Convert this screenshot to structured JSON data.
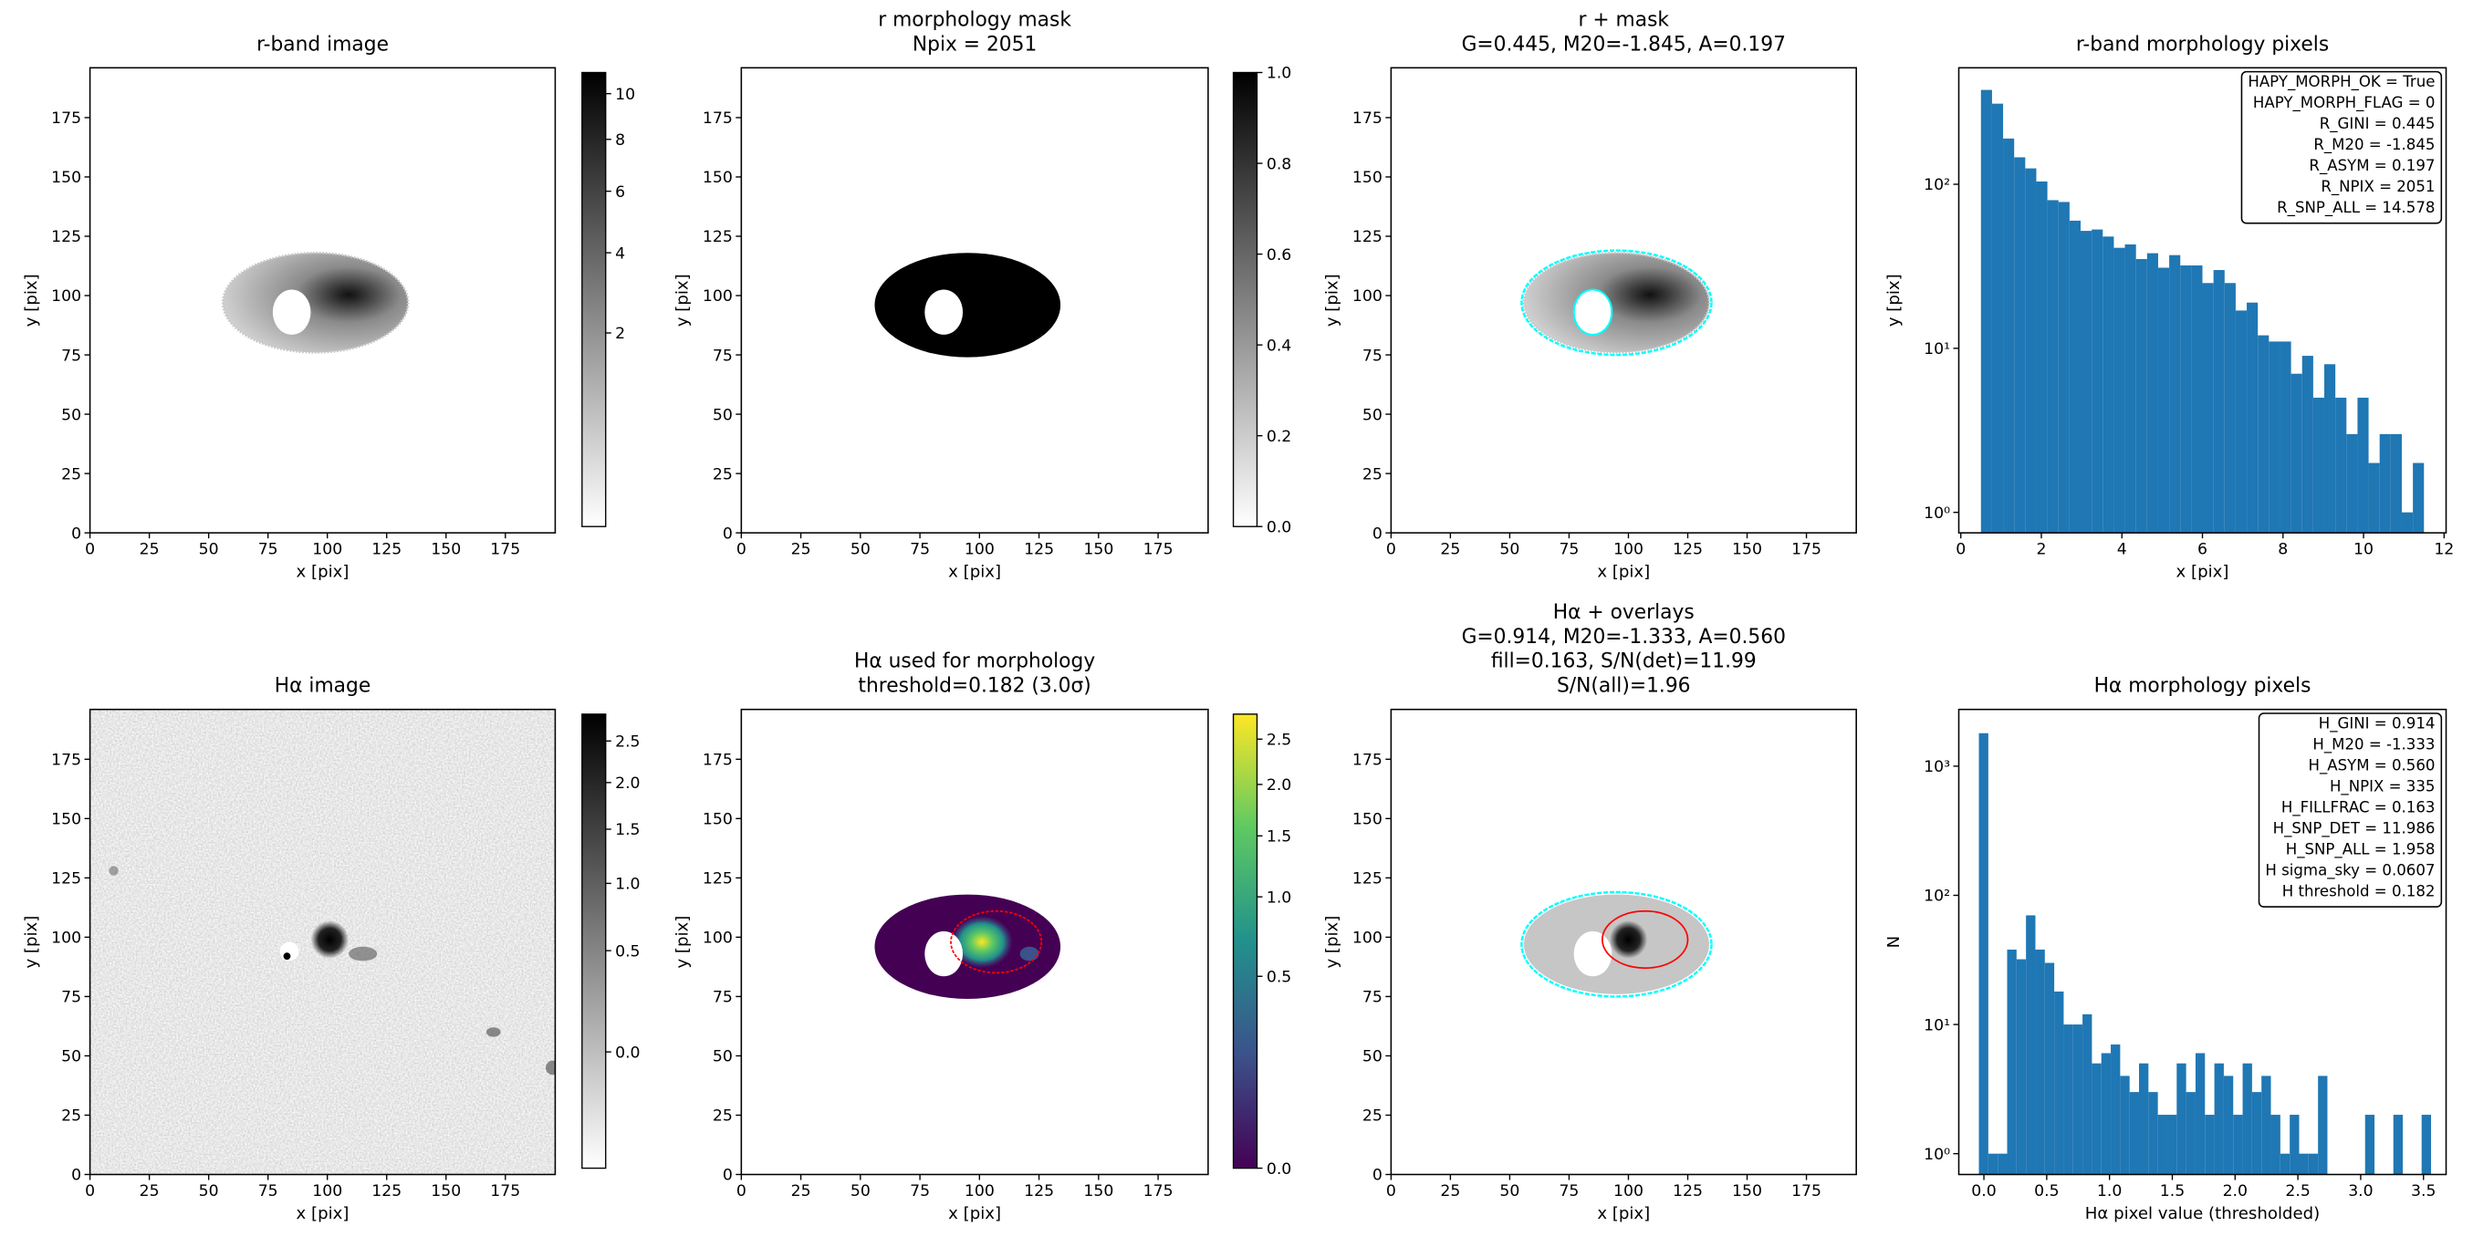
{
  "chart_data": [
    {
      "type": "image",
      "title": [
        "r-band image"
      ],
      "xlabel": "x [pix]",
      "ylabel": "y [pix]",
      "xlim": [
        0,
        196
      ],
      "ylim": [
        0,
        196
      ],
      "xticks": [
        0,
        25,
        50,
        75,
        100,
        125,
        150,
        175
      ],
      "yticks": [
        0,
        25,
        50,
        75,
        100,
        125,
        150,
        175
      ],
      "colorbar": {
        "clim": [
          0,
          11
        ],
        "stretch": "sqrt",
        "colormap": "gray_r",
        "ticks": [
          2,
          4,
          6,
          8,
          10
        ]
      }
    },
    {
      "type": "image",
      "title": [
        "r morphology mask",
        "Npix = 2051"
      ],
      "xlabel": "x [pix]",
      "ylabel": "y [pix]",
      "xlim": [
        0,
        196
      ],
      "ylim": [
        0,
        196
      ],
      "xticks": [
        0,
        25,
        50,
        75,
        100,
        125,
        150,
        175
      ],
      "yticks": [
        0,
        25,
        50,
        75,
        100,
        125,
        150,
        175
      ],
      "colorbar": {
        "clim": [
          0,
          1
        ],
        "stretch": "linear",
        "colormap": "gray_r",
        "ticks": [
          {
            "value": 0,
            "label": "0.0"
          },
          {
            "value": 0.2,
            "label": "0.2"
          },
          {
            "value": 0.4,
            "label": "0.4"
          },
          {
            "value": 0.6,
            "label": "0.6"
          },
          {
            "value": 0.8,
            "label": "0.8"
          },
          {
            "value": 1,
            "label": "1.0"
          }
        ]
      }
    },
    {
      "type": "image",
      "title": [
        "r + mask",
        "G=0.445, M20=-1.845, A=0.197"
      ],
      "xlabel": "x [pix]",
      "ylabel": "y [pix]",
      "xlim": [
        0,
        196
      ],
      "ylim": [
        0,
        196
      ],
      "xticks": [
        0,
        25,
        50,
        75,
        100,
        125,
        150,
        175
      ],
      "yticks": [
        0,
        25,
        50,
        75,
        100,
        125,
        150,
        175
      ]
    },
    {
      "type": "histogram",
      "title": [
        "r-band morphology pixels"
      ],
      "xlabel": "x [pix]",
      "ylabel": "y [pix]",
      "bins": [
        0.5,
        0.775,
        1.05,
        1.325,
        1.6,
        1.875,
        2.15,
        2.425,
        2.7,
        2.975,
        3.25,
        3.525,
        3.8,
        4.075,
        4.35,
        4.625,
        4.9,
        5.175,
        5.45,
        5.725,
        6,
        6.275,
        6.55,
        6.825,
        7.1,
        7.375,
        7.65,
        7.925,
        8.2,
        8.475,
        8.75,
        9.025,
        9.3,
        9.575,
        9.85,
        10.125,
        10.4,
        10.675,
        10.95,
        11.225,
        11.5
      ],
      "values": [
        376,
        310,
        190,
        146,
        125,
        104,
        80,
        78,
        60,
        52,
        53,
        48,
        41,
        43,
        35,
        38,
        31,
        37,
        32,
        32,
        25,
        30,
        25,
        17,
        19,
        12,
        11,
        11,
        7,
        9,
        5,
        8,
        5,
        3,
        5,
        2,
        3,
        3,
        1,
        2
      ],
      "color": "#1f77b4",
      "log_y": true,
      "xlim": [
        -0.05,
        12.05
      ],
      "ylim": [
        0.75,
        513
      ],
      "xticks": [
        0,
        2,
        4,
        6,
        8,
        10,
        12
      ],
      "yticks": [
        {
          "value": 1,
          "label": "10⁰"
        },
        {
          "value": 10,
          "label": "10¹"
        },
        {
          "value": 100,
          "label": "10²"
        }
      ],
      "annotation_corner": "upper right",
      "annotation": [
        "HAPY_MORPH_OK = True",
        "HAPY_MORPH_FLAG = 0",
        "R_GINI = 0.445",
        "R_M20 = -1.845",
        "R_ASYM = 0.197",
        "R_NPIX = 2051",
        "R_SNP_ALL = 14.578"
      ]
    },
    {
      "type": "image",
      "title": [
        "Hα image"
      ],
      "xlabel": "x [pix]",
      "ylabel": "y [pix]",
      "xlim": [
        0,
        196
      ],
      "ylim": [
        0,
        196
      ],
      "xticks": [
        0,
        25,
        50,
        75,
        100,
        125,
        150,
        175
      ],
      "yticks": [
        0,
        25,
        50,
        75,
        100,
        125,
        150,
        175
      ],
      "colorbar": {
        "clim": [
          -0.2,
          2.85
        ],
        "stretch": "sqrt",
        "colormap": "gray_r",
        "ticks": [
          {
            "value": 0,
            "label": "0.0"
          },
          {
            "value": 0.5,
            "label": "0.5"
          },
          {
            "value": 1,
            "label": "1.0"
          },
          {
            "value": 1.5,
            "label": "1.5"
          },
          {
            "value": 2,
            "label": "2.0"
          },
          {
            "value": 2.5,
            "label": "2.5"
          }
        ]
      }
    },
    {
      "type": "image",
      "title": [
        "Hα used for morphology",
        "threshold=0.182 (3.0σ)"
      ],
      "xlabel": "x [pix]",
      "ylabel": "y [pix]",
      "xlim": [
        0,
        196
      ],
      "ylim": [
        0,
        196
      ],
      "xticks": [
        0,
        25,
        50,
        75,
        100,
        125,
        150,
        175
      ],
      "yticks": [
        0,
        25,
        50,
        75,
        100,
        125,
        150,
        175
      ],
      "colorbar": {
        "clim": [
          0,
          2.8
        ],
        "stretch": "sqrt",
        "colormap": "viridis",
        "ticks": [
          {
            "value": 0,
            "label": "0.0"
          },
          {
            "value": 0.5,
            "label": "0.5"
          },
          {
            "value": 1,
            "label": "1.0"
          },
          {
            "value": 1.5,
            "label": "1.5"
          },
          {
            "value": 2,
            "label": "2.0"
          },
          {
            "value": 2.5,
            "label": "2.5"
          }
        ]
      }
    },
    {
      "type": "image",
      "title": [
        "Hα + overlays",
        "G=0.914, M20=-1.333, A=0.560",
        "fill=0.163, S/N(det)=11.99",
        "S/N(all)=1.96"
      ],
      "xlabel": "x [pix]",
      "ylabel": "y [pix]",
      "xlim": [
        0,
        196
      ],
      "ylim": [
        0,
        196
      ],
      "xticks": [
        0,
        25,
        50,
        75,
        100,
        125,
        150,
        175
      ],
      "yticks": [
        0,
        25,
        50,
        75,
        100,
        125,
        150,
        175
      ]
    },
    {
      "type": "histogram",
      "title": [
        "Hα morphology pixels"
      ],
      "xlabel": "Hα pixel value (thresholded)",
      "ylabel": "N",
      "bins": [
        -0.04,
        0.035,
        0.11,
        0.185,
        0.26,
        0.335,
        0.41,
        0.485,
        0.56,
        0.635,
        0.71,
        0.785,
        0.86,
        0.935,
        1.01,
        1.085,
        1.16,
        1.235,
        1.31,
        1.385,
        1.46,
        1.535,
        1.61,
        1.685,
        1.76,
        1.835,
        1.91,
        1.985,
        2.06,
        2.135,
        2.21,
        2.285,
        2.36,
        2.435,
        2.51,
        2.585,
        2.66,
        2.735,
        2.81,
        2.885,
        2.96,
        3.035,
        3.11,
        3.185,
        3.26,
        3.335,
        3.41,
        3.485,
        3.56
      ],
      "values": [
        1800,
        1,
        1,
        38,
        32,
        70,
        38,
        30,
        18,
        10,
        10,
        12,
        5,
        6,
        7,
        4,
        3,
        5,
        3,
        2,
        2,
        5,
        3,
        6,
        2,
        5,
        4,
        2,
        5,
        3,
        4,
        2,
        1,
        2,
        1,
        1,
        4,
        0,
        0,
        0,
        0,
        2,
        0,
        0,
        2,
        0,
        0,
        2
      ],
      "color": "#1f77b4",
      "log_y": true,
      "xlim": [
        -0.2,
        3.68
      ],
      "ylim": [
        0.69,
        2750
      ],
      "xticks": [
        {
          "value": 0,
          "label": "0.0"
        },
        {
          "value": 0.5,
          "label": "0.5"
        },
        {
          "value": 1,
          "label": "1.0"
        },
        {
          "value": 1.5,
          "label": "1.5"
        },
        {
          "value": 2,
          "label": "2.0"
        },
        {
          "value": 2.5,
          "label": "2.5"
        },
        {
          "value": 3,
          "label": "3.0"
        },
        {
          "value": 3.5,
          "label": "3.5"
        }
      ],
      "yticks": [
        {
          "value": 1,
          "label": "10⁰"
        },
        {
          "value": 10,
          "label": "10¹"
        },
        {
          "value": 100,
          "label": "10²"
        },
        {
          "value": 1000,
          "label": "10³"
        }
      ],
      "annotation_corner": "upper right",
      "annotation": [
        "H_GINI = 0.914",
        "H_M20 = -1.333",
        "H_ASYM = 0.560",
        "H_NPIX = 335",
        "H_FILLFRAC = 0.163",
        "H_SNP_DET = 11.986",
        "H_SNP_ALL = 1.958",
        "H sigma_sky = 0.0607",
        "H threshold = 0.182"
      ]
    }
  ]
}
